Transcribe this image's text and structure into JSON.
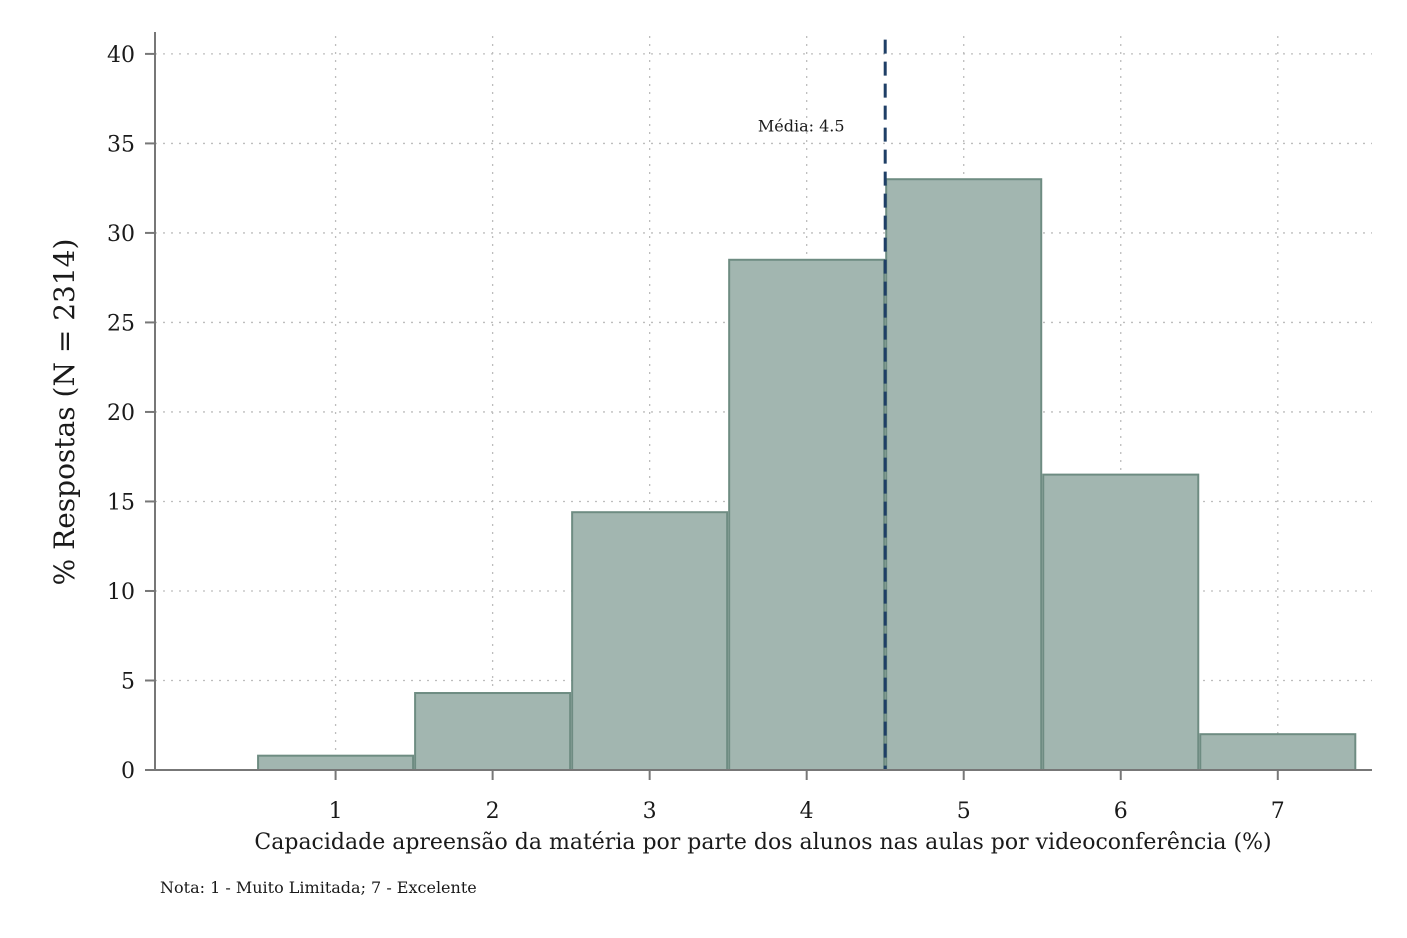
{
  "chart_data": {
    "type": "bar",
    "title": "",
    "xlabel": "Capacidade apreensão da matéria por parte dos alunos nas aulas por videoconferência (%)",
    "ylabel": "% Respostas (N = 2314)",
    "categories": [
      1,
      2,
      3,
      4,
      5,
      6,
      7
    ],
    "values": [
      0.8,
      4.3,
      14.4,
      28.5,
      33.0,
      16.5,
      2.0
    ],
    "xlim": [
      -0.15,
      7.6
    ],
    "ylim": [
      0,
      41
    ],
    "yticks": [
      0,
      5,
      10,
      15,
      20,
      25,
      30,
      35,
      40
    ],
    "xticks": [
      1,
      2,
      3,
      4,
      5,
      6,
      7
    ],
    "bin_width": 1,
    "grid": true,
    "mean_line": {
      "value": 4.5,
      "label": "Média: 4.5",
      "label_y": 36
    },
    "note": "Nota: 1 - Muito Limitada; 7 - Excelente",
    "colors": {
      "bar_fill": "#a2b6b0",
      "bar_stroke": "#6e8c82",
      "mean_line": "#1f3f66",
      "grid": "#bdbdbd",
      "axis": "#777777"
    }
  }
}
